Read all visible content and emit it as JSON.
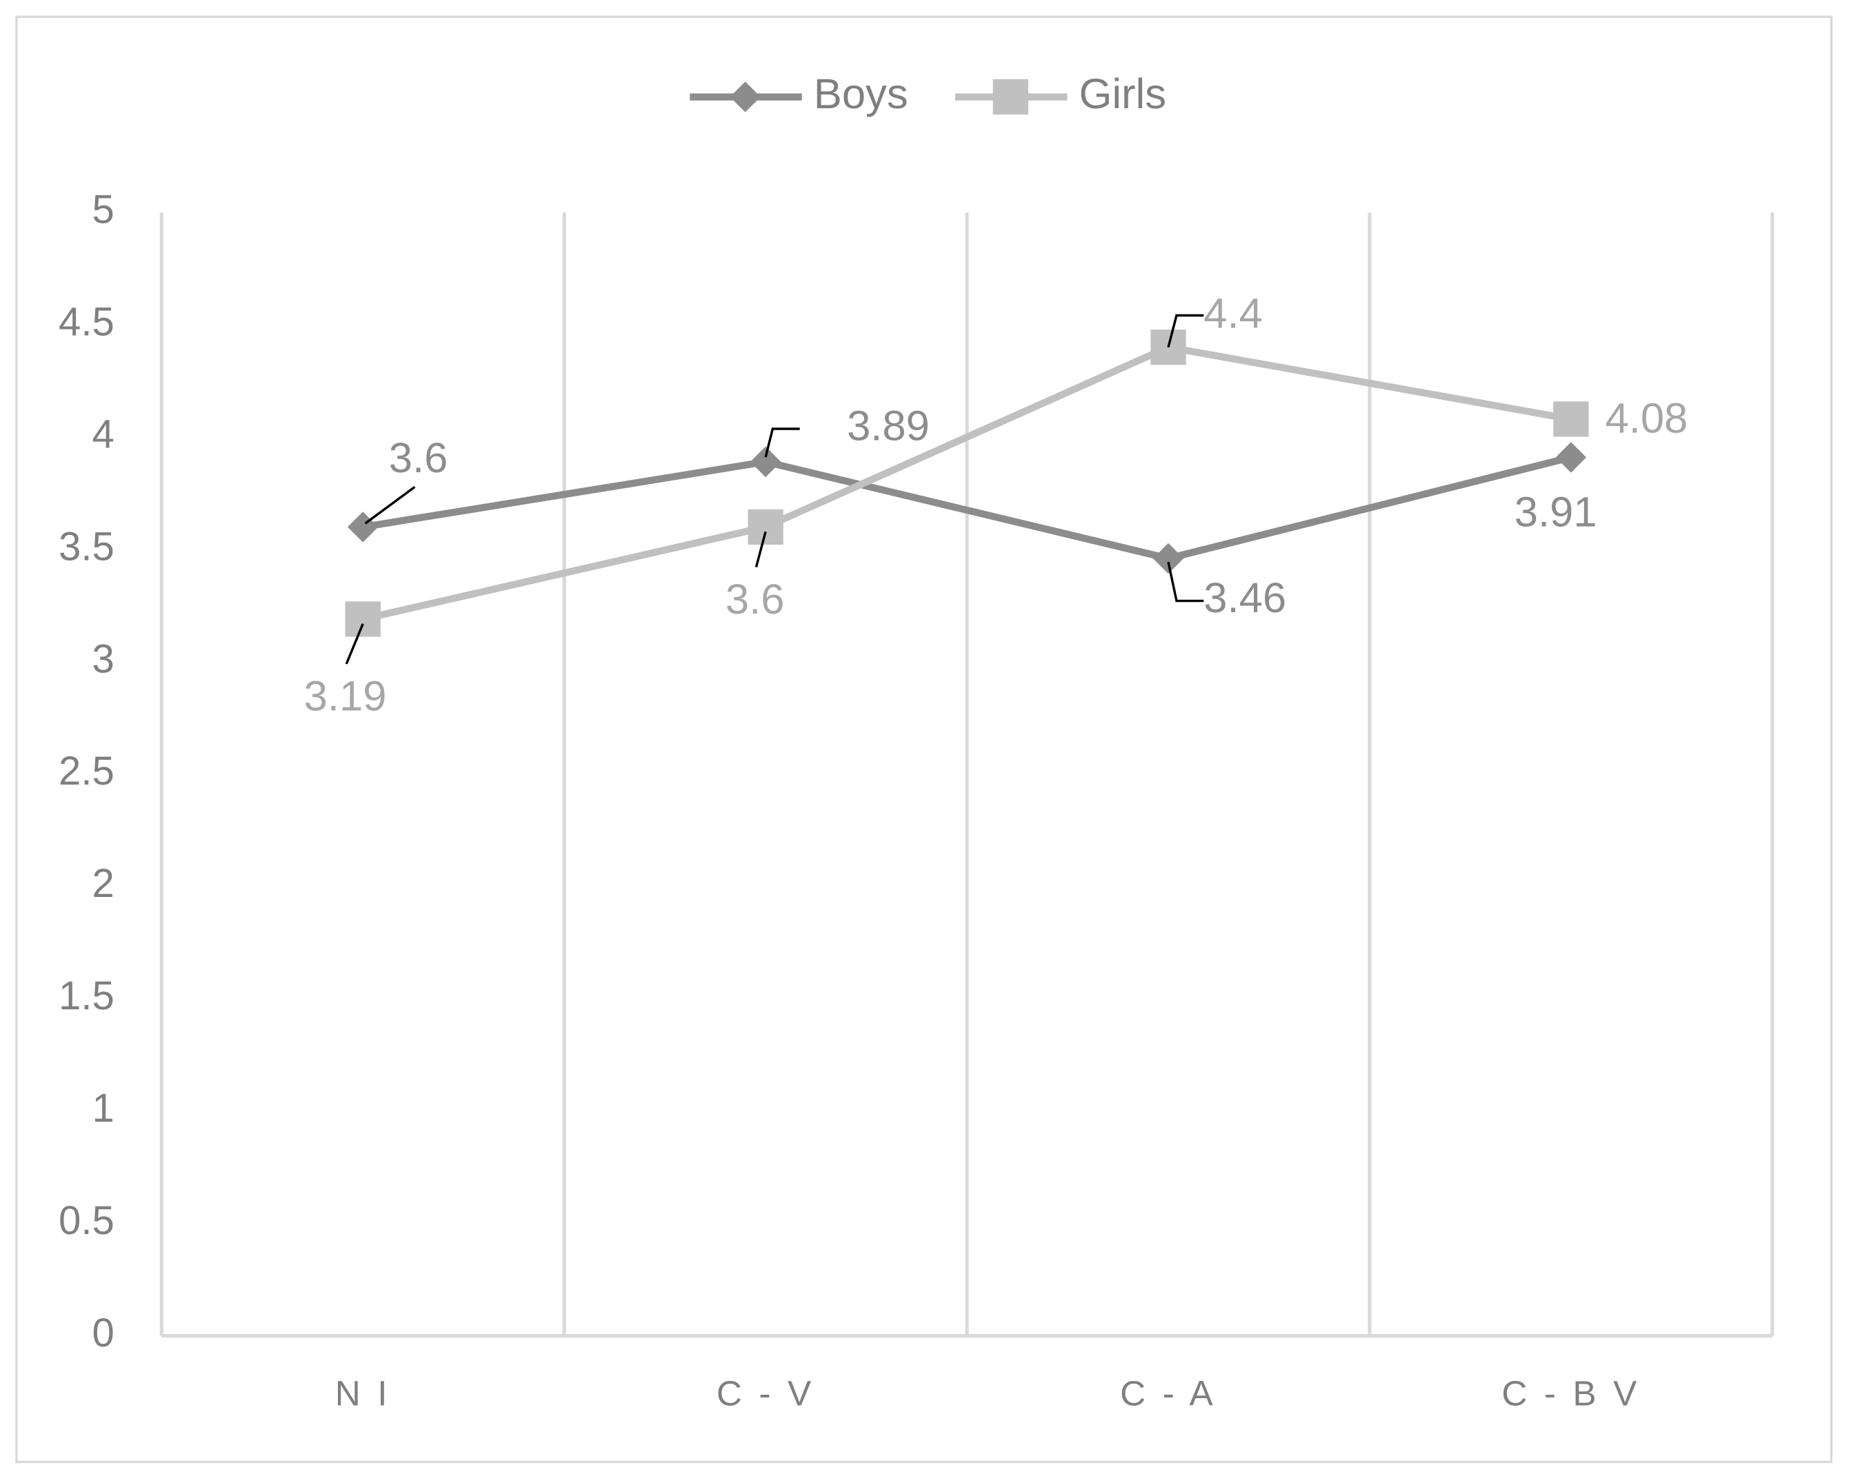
{
  "chart_data": {
    "type": "line",
    "categories": [
      "N I",
      "C - V",
      "C - A",
      "C - B V"
    ],
    "series": [
      {
        "name": "Boys",
        "color": "#8c8c8c",
        "marker": "diamond",
        "values": [
          3.6,
          3.89,
          3.46,
          3.91
        ]
      },
      {
        "name": "Girls",
        "color": "#c0c0c0",
        "marker": "square",
        "values": [
          3.19,
          3.6,
          4.4,
          4.08
        ]
      }
    ],
    "ylim": [
      0,
      5
    ],
    "yticks": [
      0,
      0.5,
      1,
      1.5,
      2,
      2.5,
      3,
      3.5,
      4,
      4.5,
      5
    ],
    "legend": "top"
  }
}
